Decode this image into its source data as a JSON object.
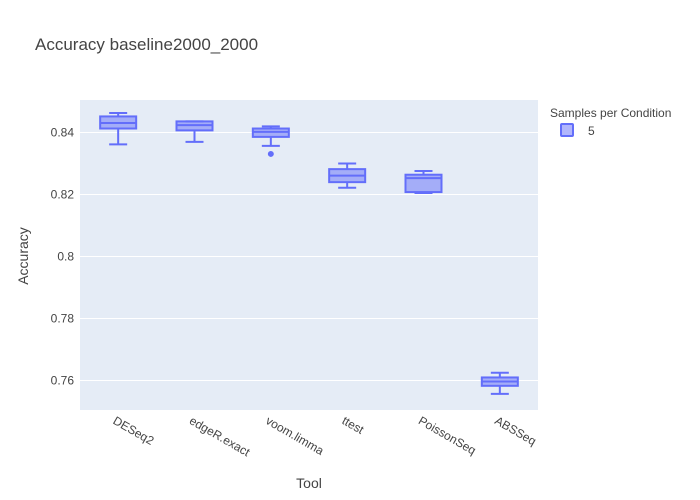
{
  "chart_data": {
    "type": "box",
    "title": "Accuracy baseline2000_2000",
    "xlabel": "Tool",
    "ylabel": "Accuracy",
    "ylim": [
      0.7505,
      0.8505
    ],
    "yticks": [
      0.76,
      0.78,
      0.8,
      0.82,
      0.84
    ],
    "ytick_labels": [
      "0.76",
      "0.78",
      "0.8",
      "0.82",
      "0.84"
    ],
    "categories": [
      "DESeq2",
      "edgeR.exact",
      "voom.limma",
      "ttest",
      "PoissonSeq",
      "ABSSeq"
    ],
    "grid": true,
    "legend": {
      "title": "Samples per Condition",
      "placement": "top-right",
      "entries": [
        "5"
      ]
    },
    "series": [
      {
        "name": "5",
        "color": "#636efa",
        "fill": "rgba(99,110,250,0.5)",
        "boxes": [
          {
            "category": "DESeq2",
            "min": 0.8362,
            "q1": 0.8413,
            "median": 0.8431,
            "q3": 0.8452,
            "max": 0.8463,
            "outliers": []
          },
          {
            "category": "edgeR.exact",
            "min": 0.837,
            "q1": 0.8407,
            "median": 0.8424,
            "q3": 0.8436,
            "max": 0.8436,
            "outliers": []
          },
          {
            "category": "voom.limma",
            "min": 0.8357,
            "q1": 0.8386,
            "median": 0.8402,
            "q3": 0.8413,
            "max": 0.842,
            "outliers": [
              0.8331
            ]
          },
          {
            "category": "ttest",
            "min": 0.8222,
            "q1": 0.824,
            "median": 0.8261,
            "q3": 0.8282,
            "max": 0.83,
            "outliers": []
          },
          {
            "category": "PoissonSeq",
            "min": 0.8205,
            "q1": 0.8208,
            "median": 0.8253,
            "q3": 0.8264,
            "max": 0.8276,
            "outliers": []
          },
          {
            "category": "ABSSeq",
            "min": 0.7557,
            "q1": 0.7583,
            "median": 0.7597,
            "q3": 0.761,
            "max": 0.7625,
            "outliers": []
          }
        ]
      }
    ]
  }
}
